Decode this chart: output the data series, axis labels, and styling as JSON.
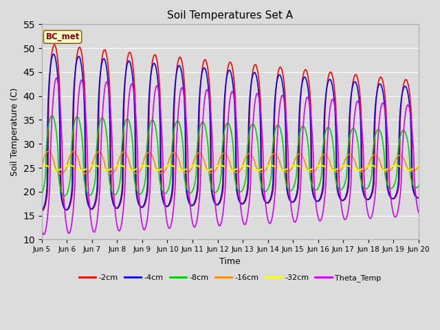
{
  "title": "Soil Temperatures Set A",
  "xlabel": "Time",
  "ylabel": "Soil Temperature (C)",
  "ylim": [
    10,
    55
  ],
  "n_days": 15,
  "background_color": "#dcdcdc",
  "plot_bg_color": "#dcdcdc",
  "annotation_text": "BC_met",
  "annotation_color": "#8B0000",
  "annotation_bg": "#ffffcc",
  "series": {
    "neg2cm": {
      "label": "-2cm",
      "color": "#ff0000"
    },
    "neg4cm": {
      "label": "-4cm",
      "color": "#0000ff"
    },
    "neg8cm": {
      "label": "-8cm",
      "color": "#00cc00"
    },
    "neg16cm": {
      "label": "-16cm",
      "color": "#ff8800"
    },
    "neg32cm": {
      "label": "-32cm",
      "color": "#ffff00"
    },
    "theta": {
      "label": "Theta_Temp",
      "color": "#cc00ff"
    }
  },
  "grid_color": "#ffffff",
  "tick_label_fontsize": 7.5,
  "figwidth": 6.4,
  "figheight": 4.8,
  "dpi": 100
}
